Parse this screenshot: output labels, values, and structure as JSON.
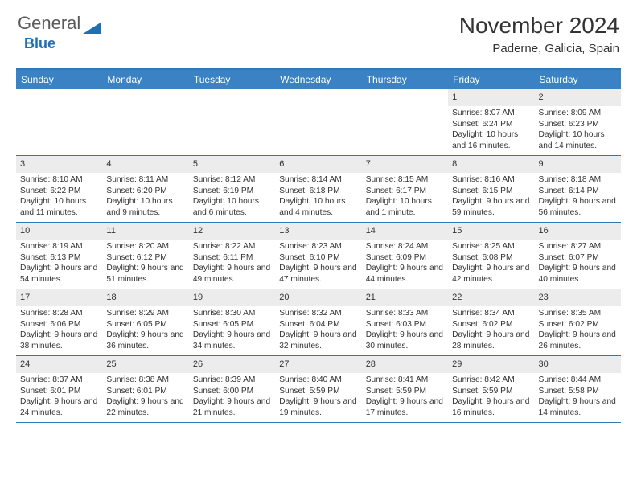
{
  "brand": {
    "part1": "General",
    "part2": "Blue",
    "triangle_color": "#1f6fb2"
  },
  "title": "November 2024",
  "location": "Paderne, Galicia, Spain",
  "colors": {
    "header_bg": "#3a82c4",
    "header_border": "#2f79b9",
    "daynum_bg": "#ececec",
    "page_bg": "#ffffff",
    "text": "#333333"
  },
  "weekdays": [
    "Sunday",
    "Monday",
    "Tuesday",
    "Wednesday",
    "Thursday",
    "Friday",
    "Saturday"
  ],
  "weeks": [
    [
      {
        "n": "",
        "sunrise": "",
        "sunset": "",
        "daylight": ""
      },
      {
        "n": "",
        "sunrise": "",
        "sunset": "",
        "daylight": ""
      },
      {
        "n": "",
        "sunrise": "",
        "sunset": "",
        "daylight": ""
      },
      {
        "n": "",
        "sunrise": "",
        "sunset": "",
        "daylight": ""
      },
      {
        "n": "",
        "sunrise": "",
        "sunset": "",
        "daylight": ""
      },
      {
        "n": "1",
        "sunrise": "Sunrise: 8:07 AM",
        "sunset": "Sunset: 6:24 PM",
        "daylight": "Daylight: 10 hours and 16 minutes."
      },
      {
        "n": "2",
        "sunrise": "Sunrise: 8:09 AM",
        "sunset": "Sunset: 6:23 PM",
        "daylight": "Daylight: 10 hours and 14 minutes."
      }
    ],
    [
      {
        "n": "3",
        "sunrise": "Sunrise: 8:10 AM",
        "sunset": "Sunset: 6:22 PM",
        "daylight": "Daylight: 10 hours and 11 minutes."
      },
      {
        "n": "4",
        "sunrise": "Sunrise: 8:11 AM",
        "sunset": "Sunset: 6:20 PM",
        "daylight": "Daylight: 10 hours and 9 minutes."
      },
      {
        "n": "5",
        "sunrise": "Sunrise: 8:12 AM",
        "sunset": "Sunset: 6:19 PM",
        "daylight": "Daylight: 10 hours and 6 minutes."
      },
      {
        "n": "6",
        "sunrise": "Sunrise: 8:14 AM",
        "sunset": "Sunset: 6:18 PM",
        "daylight": "Daylight: 10 hours and 4 minutes."
      },
      {
        "n": "7",
        "sunrise": "Sunrise: 8:15 AM",
        "sunset": "Sunset: 6:17 PM",
        "daylight": "Daylight: 10 hours and 1 minute."
      },
      {
        "n": "8",
        "sunrise": "Sunrise: 8:16 AM",
        "sunset": "Sunset: 6:15 PM",
        "daylight": "Daylight: 9 hours and 59 minutes."
      },
      {
        "n": "9",
        "sunrise": "Sunrise: 8:18 AM",
        "sunset": "Sunset: 6:14 PM",
        "daylight": "Daylight: 9 hours and 56 minutes."
      }
    ],
    [
      {
        "n": "10",
        "sunrise": "Sunrise: 8:19 AM",
        "sunset": "Sunset: 6:13 PM",
        "daylight": "Daylight: 9 hours and 54 minutes."
      },
      {
        "n": "11",
        "sunrise": "Sunrise: 8:20 AM",
        "sunset": "Sunset: 6:12 PM",
        "daylight": "Daylight: 9 hours and 51 minutes."
      },
      {
        "n": "12",
        "sunrise": "Sunrise: 8:22 AM",
        "sunset": "Sunset: 6:11 PM",
        "daylight": "Daylight: 9 hours and 49 minutes."
      },
      {
        "n": "13",
        "sunrise": "Sunrise: 8:23 AM",
        "sunset": "Sunset: 6:10 PM",
        "daylight": "Daylight: 9 hours and 47 minutes."
      },
      {
        "n": "14",
        "sunrise": "Sunrise: 8:24 AM",
        "sunset": "Sunset: 6:09 PM",
        "daylight": "Daylight: 9 hours and 44 minutes."
      },
      {
        "n": "15",
        "sunrise": "Sunrise: 8:25 AM",
        "sunset": "Sunset: 6:08 PM",
        "daylight": "Daylight: 9 hours and 42 minutes."
      },
      {
        "n": "16",
        "sunrise": "Sunrise: 8:27 AM",
        "sunset": "Sunset: 6:07 PM",
        "daylight": "Daylight: 9 hours and 40 minutes."
      }
    ],
    [
      {
        "n": "17",
        "sunrise": "Sunrise: 8:28 AM",
        "sunset": "Sunset: 6:06 PM",
        "daylight": "Daylight: 9 hours and 38 minutes."
      },
      {
        "n": "18",
        "sunrise": "Sunrise: 8:29 AM",
        "sunset": "Sunset: 6:05 PM",
        "daylight": "Daylight: 9 hours and 36 minutes."
      },
      {
        "n": "19",
        "sunrise": "Sunrise: 8:30 AM",
        "sunset": "Sunset: 6:05 PM",
        "daylight": "Daylight: 9 hours and 34 minutes."
      },
      {
        "n": "20",
        "sunrise": "Sunrise: 8:32 AM",
        "sunset": "Sunset: 6:04 PM",
        "daylight": "Daylight: 9 hours and 32 minutes."
      },
      {
        "n": "21",
        "sunrise": "Sunrise: 8:33 AM",
        "sunset": "Sunset: 6:03 PM",
        "daylight": "Daylight: 9 hours and 30 minutes."
      },
      {
        "n": "22",
        "sunrise": "Sunrise: 8:34 AM",
        "sunset": "Sunset: 6:02 PM",
        "daylight": "Daylight: 9 hours and 28 minutes."
      },
      {
        "n": "23",
        "sunrise": "Sunrise: 8:35 AM",
        "sunset": "Sunset: 6:02 PM",
        "daylight": "Daylight: 9 hours and 26 minutes."
      }
    ],
    [
      {
        "n": "24",
        "sunrise": "Sunrise: 8:37 AM",
        "sunset": "Sunset: 6:01 PM",
        "daylight": "Daylight: 9 hours and 24 minutes."
      },
      {
        "n": "25",
        "sunrise": "Sunrise: 8:38 AM",
        "sunset": "Sunset: 6:01 PM",
        "daylight": "Daylight: 9 hours and 22 minutes."
      },
      {
        "n": "26",
        "sunrise": "Sunrise: 8:39 AM",
        "sunset": "Sunset: 6:00 PM",
        "daylight": "Daylight: 9 hours and 21 minutes."
      },
      {
        "n": "27",
        "sunrise": "Sunrise: 8:40 AM",
        "sunset": "Sunset: 5:59 PM",
        "daylight": "Daylight: 9 hours and 19 minutes."
      },
      {
        "n": "28",
        "sunrise": "Sunrise: 8:41 AM",
        "sunset": "Sunset: 5:59 PM",
        "daylight": "Daylight: 9 hours and 17 minutes."
      },
      {
        "n": "29",
        "sunrise": "Sunrise: 8:42 AM",
        "sunset": "Sunset: 5:59 PM",
        "daylight": "Daylight: 9 hours and 16 minutes."
      },
      {
        "n": "30",
        "sunrise": "Sunrise: 8:44 AM",
        "sunset": "Sunset: 5:58 PM",
        "daylight": "Daylight: 9 hours and 14 minutes."
      }
    ]
  ]
}
